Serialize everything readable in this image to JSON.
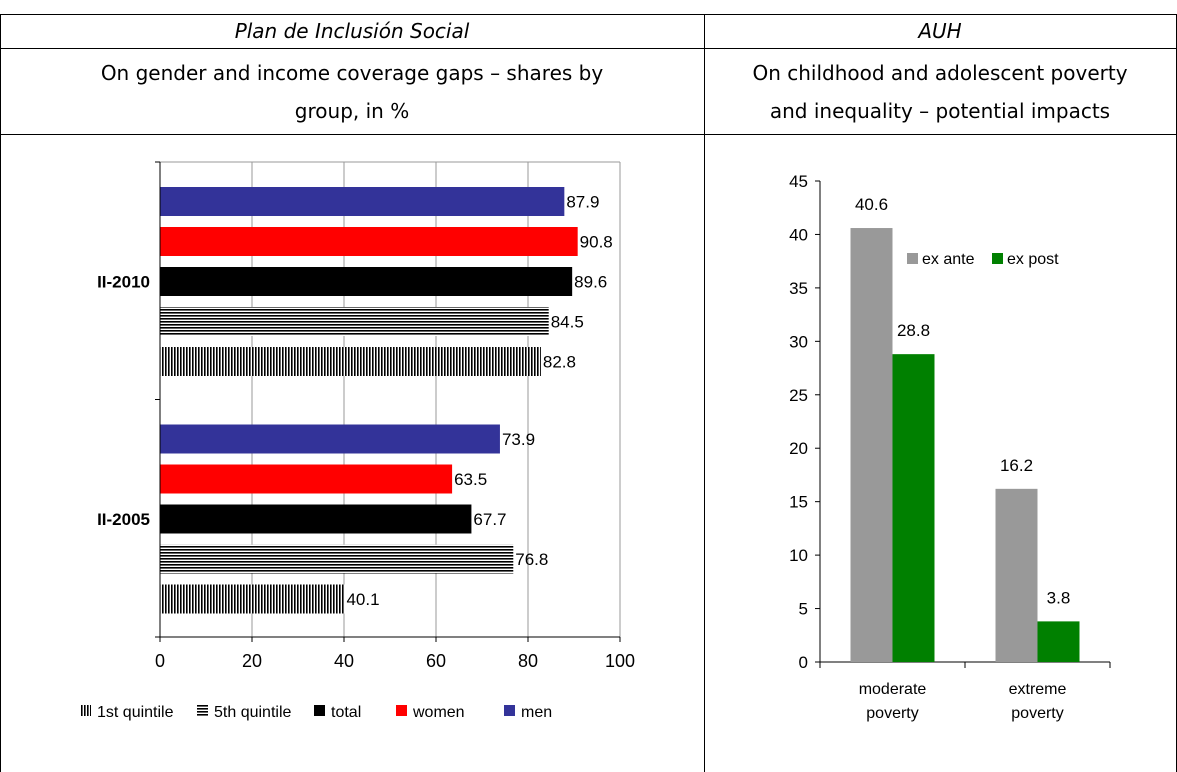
{
  "header": {
    "left_title": "Plan de Inclusión Social",
    "right_title": "AUH",
    "left_subtitle_line1": "On gender and income coverage gaps – shares by",
    "left_subtitle_line2": "group, in %",
    "right_subtitle_line1": "On childhood and adolescent poverty",
    "right_subtitle_line2": "and inequality – potential impacts"
  },
  "colors": {
    "men": "#333399",
    "women": "#ff0000",
    "total": "#000000",
    "ex_ante": "#999999",
    "ex_post": "#008000"
  },
  "chart_data": [
    {
      "type": "bar",
      "orientation": "horizontal",
      "categories": [
        "II-2010",
        "II-2005"
      ],
      "series": [
        {
          "name": "men",
          "values": [
            87.9,
            73.9
          ]
        },
        {
          "name": "women",
          "values": [
            90.8,
            63.5
          ]
        },
        {
          "name": "total",
          "values": [
            89.6,
            67.7
          ]
        },
        {
          "name": "5th quintile",
          "values": [
            84.5,
            76.8
          ]
        },
        {
          "name": "1st quintile",
          "values": [
            82.8,
            40.1
          ]
        }
      ],
      "xlim": [
        0,
        100
      ],
      "xticks": [
        "0",
        "20",
        "40",
        "60",
        "80",
        "100"
      ],
      "legend": [
        "1st quintile",
        "5th quintile",
        "total",
        "women",
        "men"
      ],
      "legend_position": "bottom",
      "grid": true
    },
    {
      "type": "bar",
      "categories": [
        "moderate poverty",
        "extreme poverty"
      ],
      "category_lines": [
        [
          "moderate",
          "poverty"
        ],
        [
          "extreme",
          "poverty"
        ]
      ],
      "series": [
        {
          "name": "ex ante",
          "values": [
            40.6,
            16.2
          ]
        },
        {
          "name": "ex post",
          "values": [
            28.8,
            3.8
          ]
        }
      ],
      "ylim": [
        0,
        45
      ],
      "yticks": [
        "0",
        "5",
        "10",
        "15",
        "20",
        "25",
        "30",
        "35",
        "40",
        "45"
      ],
      "legend": [
        "ex ante",
        "ex post"
      ],
      "legend_position": "top-right",
      "grid": false
    }
  ]
}
